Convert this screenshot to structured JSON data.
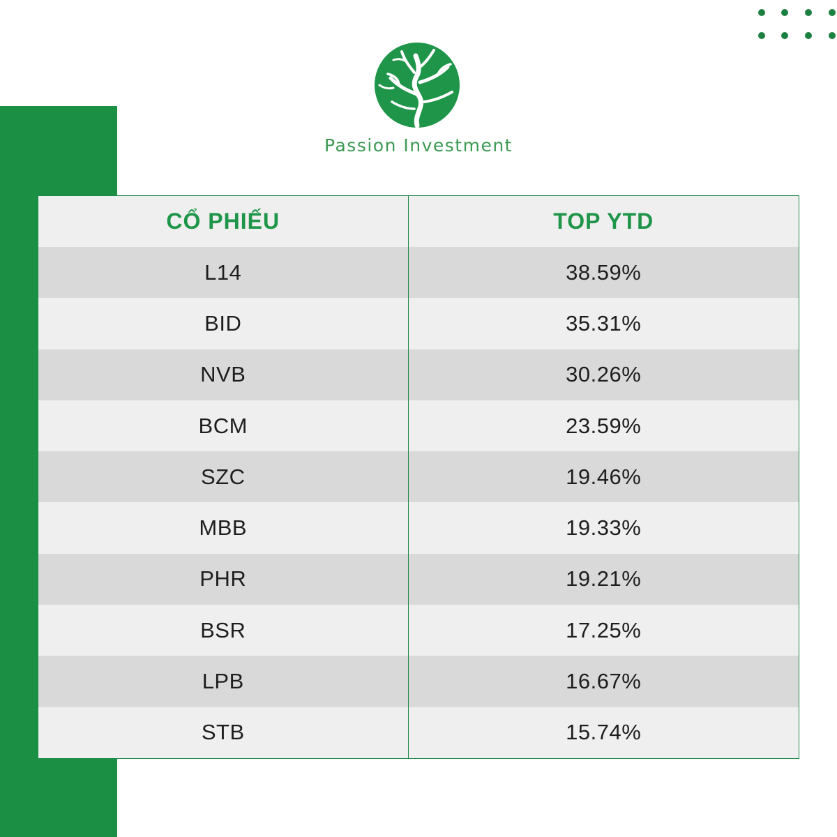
{
  "brand": {
    "name": "Passion Investment",
    "accent_color": "#1b9045",
    "logo_icon": "tree-circle-icon"
  },
  "table": {
    "headers": [
      "CỔ PHIẾU",
      "TOP YTD"
    ],
    "rows": [
      {
        "ticker": "L14",
        "ytd": "38.59%"
      },
      {
        "ticker": "BID",
        "ytd": "35.31%"
      },
      {
        "ticker": "NVB",
        "ytd": "30.26%"
      },
      {
        "ticker": "BCM",
        "ytd": "23.59%"
      },
      {
        "ticker": "SZC",
        "ytd": "19.46%"
      },
      {
        "ticker": "MBB",
        "ytd": "19.33%"
      },
      {
        "ticker": "PHR",
        "ytd": "19.21%"
      },
      {
        "ticker": "BSR",
        "ytd": "17.25%"
      },
      {
        "ticker": "LPB",
        "ytd": "16.67%"
      },
      {
        "ticker": "STB",
        "ytd": "15.74%"
      }
    ]
  }
}
